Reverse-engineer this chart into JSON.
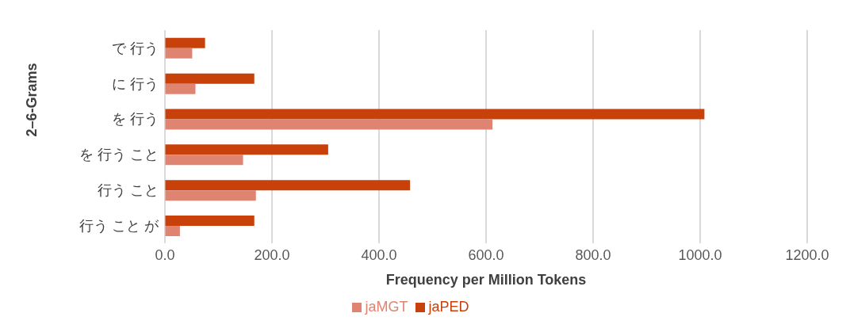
{
  "chart_data": {
    "type": "bar",
    "orientation": "horizontal",
    "xlabel": "Frequency per Million Tokens",
    "ylabel": "2–6-Grams",
    "categories": [
      "で 行う",
      "に 行う",
      "を 行う",
      "を 行う こと",
      "行う こと",
      "行う こと が"
    ],
    "series": [
      {
        "name": "jaPED",
        "color": "#c8400a",
        "values": [
          75,
          167,
          1008,
          305,
          458,
          167
        ]
      },
      {
        "name": "jaMGT",
        "color": "#e08472",
        "values": [
          51,
          57,
          612,
          146,
          170,
          28
        ]
      }
    ],
    "xlim": [
      0,
      1200
    ],
    "xticks": [
      {
        "value": 0,
        "label": "0.0"
      },
      {
        "value": 200,
        "label": "200.0"
      },
      {
        "value": 400,
        "label": "400.0"
      },
      {
        "value": 600,
        "label": "600.0"
      },
      {
        "value": 800,
        "label": "800.0"
      },
      {
        "value": 1000,
        "label": "1000.0"
      },
      {
        "value": 1200,
        "label": "1200.0"
      }
    ],
    "grid": "x",
    "legend": "bottom"
  }
}
